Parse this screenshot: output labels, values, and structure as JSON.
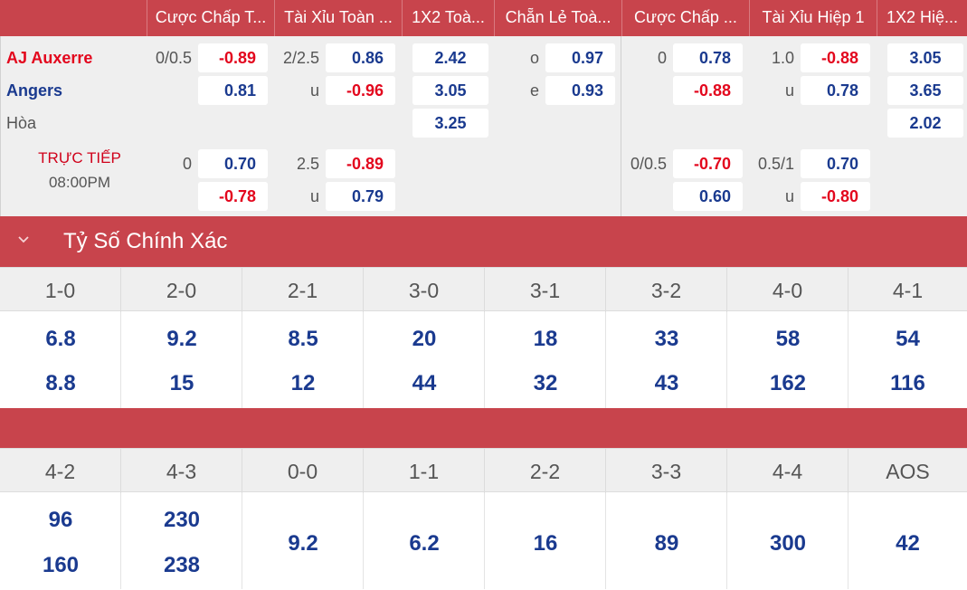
{
  "header": {
    "columns": [
      "Cược Chấp T...",
      "Tài Xỉu Toàn ...",
      "1X2 Toà...",
      "Chẵn Lẻ Toà...",
      "Cược Chấp ...",
      "Tài Xỉu Hiệp 1",
      "1X2 Hiệ..."
    ]
  },
  "match": {
    "home": "AJ Auxerre",
    "away": "Angers",
    "draw": "Hòa",
    "status": "TRỰC TIẾP",
    "time": "08:00PM",
    "home_color": "#e3061d",
    "away_color": "#1a3a8f"
  },
  "odds": {
    "row1": {
      "hdp_line": "0/0.5",
      "hdp_home": "-0.89",
      "hdp_away": "0.81",
      "ou_line": "2/2.5",
      "ou_over": "0.86",
      "ou_u": "u",
      "ou_under": "-0.96",
      "x12_1": "2.42",
      "x12_2": "3.05",
      "x12_x": "3.25",
      "oe_o": "o",
      "oe_o_val": "0.97",
      "oe_e": "e",
      "oe_e_val": "0.93",
      "h1_hdp_line": "0",
      "h1_hdp_home": "0.78",
      "h1_hdp_away": "-0.88",
      "h1_ou_line": "1.0",
      "h1_ou_over": "-0.88",
      "h1_ou_u": "u",
      "h1_ou_under": "0.78",
      "h1_x12_1": "3.05",
      "h1_x12_2": "3.65",
      "h1_x12_x": "2.02"
    },
    "row2": {
      "hdp_line": "0",
      "hdp_home": "0.70",
      "hdp_away": "-0.78",
      "ou_line": "2.5",
      "ou_over": "-0.89",
      "ou_u": "u",
      "ou_under": "0.79",
      "h1_hdp_line": "0/0.5",
      "h1_hdp_home": "-0.70",
      "h1_hdp_away": "0.60",
      "h1_ou_line": "0.5/1",
      "h1_ou_over": "0.70",
      "h1_ou_u": "u",
      "h1_ou_under": "-0.80"
    }
  },
  "section": {
    "title": "Tỷ Số Chính Xác",
    "icon": "chevron-down-icon"
  },
  "scores_a": {
    "labels": [
      "1-0",
      "2-0",
      "2-1",
      "3-0",
      "3-1",
      "3-2",
      "4-0",
      "4-1"
    ],
    "home": [
      "6.8",
      "9.2",
      "8.5",
      "20",
      "18",
      "33",
      "58",
      "54"
    ],
    "away": [
      "8.8",
      "15",
      "12",
      "44",
      "32",
      "43",
      "162",
      "116"
    ]
  },
  "scores_b": {
    "labels": [
      "4-2",
      "4-3",
      "0-0",
      "1-1",
      "2-2",
      "3-3",
      "4-4",
      "AOS"
    ],
    "home": [
      "96",
      "230"
    ],
    "away": [
      "160",
      "238"
    ],
    "single": [
      "9.2",
      "6.2",
      "16",
      "89",
      "300",
      "42"
    ]
  },
  "colors": {
    "accent": "#c8444c",
    "positive": "#1a3a8f",
    "negative": "#e3061d"
  }
}
